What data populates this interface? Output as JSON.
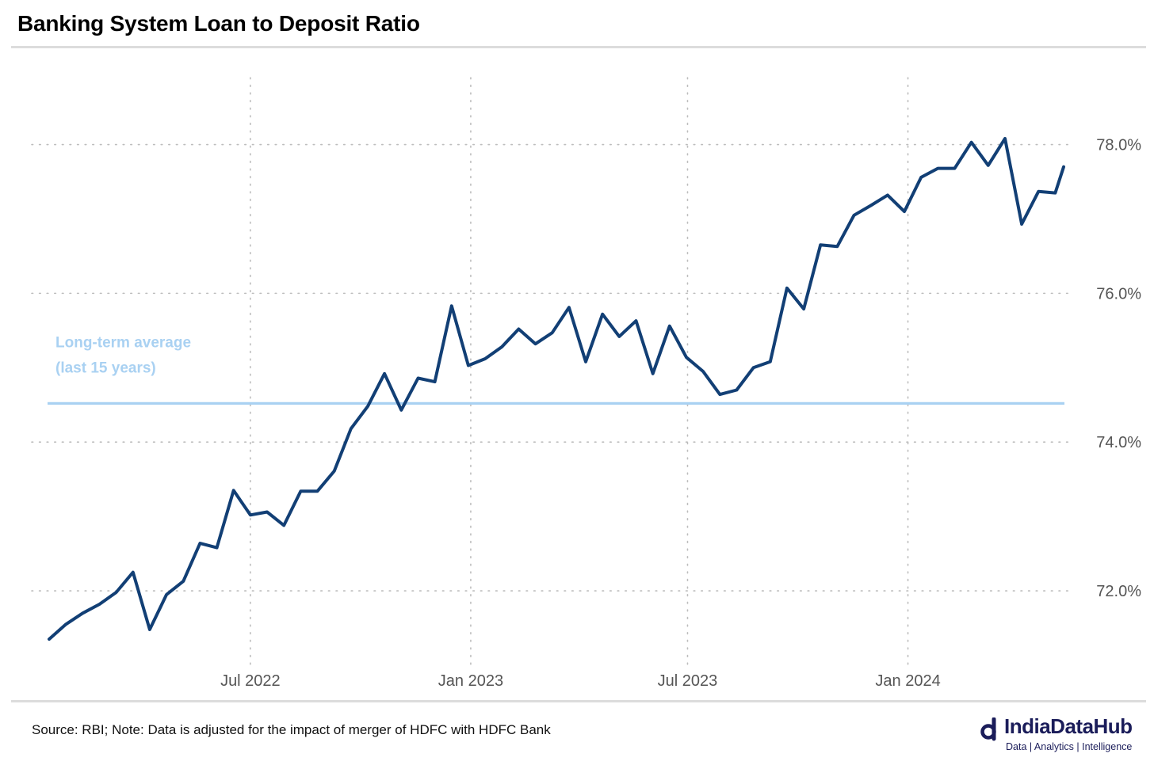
{
  "title": "Banking System Loan to Deposit Ratio",
  "source_note": "Source: RBI; Note: Data is adjusted for the impact of merger of HDFC with HDFC Bank",
  "logo": {
    "name": "IndiaDataHub",
    "tagline": "Data | Analytics | Intelligence"
  },
  "colors": {
    "series": "#123f75",
    "average": "#a9d1f2",
    "grid": "#bdbdbd",
    "axis_text": "#555555"
  },
  "chart_data": {
    "type": "line",
    "title": "Banking System Loan to Deposit Ratio",
    "xlabel": "",
    "ylabel": "",
    "y_unit": "%",
    "ylim": [
      71.0,
      78.9
    ],
    "yticks": [
      72.0,
      74.0,
      76.0,
      78.0
    ],
    "ytick_labels": [
      "72.0%",
      "74.0%",
      "76.0%",
      "78.0%"
    ],
    "y_axis_position": "right",
    "x_start_date": "2022-01-14",
    "x_end_date": "2024-05-10",
    "x_ticks": [
      {
        "date": "2022-07-01",
        "label": "Jul 2022"
      },
      {
        "date": "2023-01-01",
        "label": "Jan 2023"
      },
      {
        "date": "2023-07-01",
        "label": "Jul 2023"
      },
      {
        "date": "2024-01-01",
        "label": "Jan 2024"
      }
    ],
    "grid": true,
    "grid_style": "dotted",
    "reference_line": {
      "value": 74.52,
      "label_line1": "Long-term average",
      "label_line2": "(last 15 years)"
    },
    "series": [
      {
        "values": [
          [
            "2022-01-14",
            71.35
          ],
          [
            "2022-01-28",
            71.55
          ],
          [
            "2022-02-11",
            71.7
          ],
          [
            "2022-02-25",
            71.82
          ],
          [
            "2022-03-11",
            71.98
          ],
          [
            "2022-03-25",
            72.25
          ],
          [
            "2022-04-08",
            71.48
          ],
          [
            "2022-04-22",
            71.95
          ],
          [
            "2022-05-06",
            72.13
          ],
          [
            "2022-05-20",
            72.64
          ],
          [
            "2022-06-03",
            72.58
          ],
          [
            "2022-06-17",
            73.35
          ],
          [
            "2022-07-01",
            73.02
          ],
          [
            "2022-07-15",
            73.06
          ],
          [
            "2022-07-29",
            72.88
          ],
          [
            "2022-08-12",
            73.34
          ],
          [
            "2022-08-26",
            73.34
          ],
          [
            "2022-09-09",
            73.61
          ],
          [
            "2022-09-23",
            74.18
          ],
          [
            "2022-10-07",
            74.48
          ],
          [
            "2022-10-21",
            74.92
          ],
          [
            "2022-11-04",
            74.43
          ],
          [
            "2022-11-18",
            74.86
          ],
          [
            "2022-12-02",
            74.81
          ],
          [
            "2022-12-16",
            75.83
          ],
          [
            "2022-12-30",
            75.03
          ],
          [
            "2023-01-13",
            75.12
          ],
          [
            "2023-01-27",
            75.28
          ],
          [
            "2023-02-10",
            75.52
          ],
          [
            "2023-02-24",
            75.32
          ],
          [
            "2023-03-10",
            75.47
          ],
          [
            "2023-03-24",
            75.81
          ],
          [
            "2023-04-07",
            75.08
          ],
          [
            "2023-04-21",
            75.72
          ],
          [
            "2023-05-05",
            75.42
          ],
          [
            "2023-05-19",
            75.63
          ],
          [
            "2023-06-02",
            74.92
          ],
          [
            "2023-06-16",
            75.56
          ],
          [
            "2023-06-30",
            75.14
          ],
          [
            "2023-07-14",
            74.95
          ],
          [
            "2023-07-28",
            74.64
          ],
          [
            "2023-08-11",
            74.7
          ],
          [
            "2023-08-25",
            75.0
          ],
          [
            "2023-09-08",
            75.08
          ],
          [
            "2023-09-22",
            76.07
          ],
          [
            "2023-10-06",
            75.79
          ],
          [
            "2023-10-20",
            76.65
          ],
          [
            "2023-11-03",
            76.63
          ],
          [
            "2023-11-17",
            77.05
          ],
          [
            "2023-12-01",
            77.18
          ],
          [
            "2023-12-15",
            77.32
          ],
          [
            "2023-12-29",
            77.1
          ],
          [
            "2024-01-12",
            77.56
          ],
          [
            "2024-01-26",
            77.68
          ],
          [
            "2024-02-09",
            77.68
          ],
          [
            "2024-02-23",
            78.03
          ],
          [
            "2024-03-08",
            77.72
          ],
          [
            "2024-03-22",
            78.08
          ],
          [
            "2024-04-05",
            76.93
          ],
          [
            "2024-04-19",
            77.37
          ],
          [
            "2024-05-03",
            77.35
          ],
          [
            "2024-05-10",
            77.7
          ]
        ]
      }
    ]
  }
}
